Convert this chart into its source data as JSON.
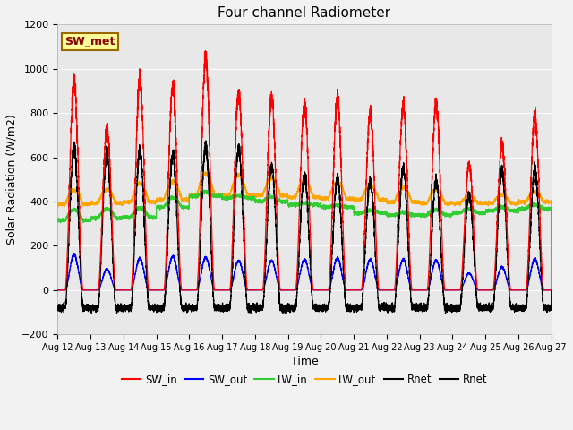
{
  "title": "Four channel Radiometer",
  "xlabel": "Time",
  "ylabel": "Solar Radiation (W/m2)",
  "ylim": [
    -200,
    1200
  ],
  "n_days": 15,
  "annotation_text": "SW_met",
  "annotation_bg": "#FFFF99",
  "annotation_border": "#996600",
  "plot_bg_color": "#e8e8e8",
  "fig_bg_color": "#f2f2f2",
  "SW_in_peak_heights": [
    950,
    730,
    950,
    920,
    1050,
    890,
    870,
    840,
    860,
    800,
    830,
    840,
    570,
    660,
    790
  ],
  "SW_out_peak_heights": [
    170,
    100,
    150,
    160,
    155,
    140,
    140,
    145,
    150,
    145,
    145,
    140,
    80,
    110,
    148
  ],
  "LW_in_base": [
    315,
    325,
    330,
    375,
    425,
    415,
    400,
    385,
    375,
    348,
    338,
    338,
    348,
    358,
    368
  ],
  "LW_in_peak": [
    395,
    395,
    400,
    445,
    455,
    435,
    435,
    398,
    388,
    368,
    358,
    378,
    378,
    388,
    398
  ],
  "LW_out_base": [
    388,
    393,
    398,
    408,
    428,
    428,
    428,
    418,
    413,
    408,
    398,
    393,
    393,
    393,
    398
  ],
  "LW_out_peak": [
    488,
    488,
    528,
    538,
    578,
    568,
    548,
    538,
    528,
    508,
    498,
    488,
    438,
    448,
    468
  ],
  "Rnet_peak_heights": [
    650,
    620,
    630,
    610,
    650,
    640,
    560,
    520,
    500,
    490,
    545,
    490,
    430,
    540,
    545
  ],
  "Rnet_night": -80,
  "yticks": [
    -200,
    0,
    200,
    400,
    600,
    800,
    1000,
    1200
  ],
  "xtick_labels": [
    "Aug 12",
    "Aug 13",
    "Aug 14",
    "Aug 15",
    "Aug 16",
    "Aug 17",
    "Aug 18",
    "Aug 19",
    "Aug 20",
    "Aug 21",
    "Aug 22",
    "Aug 23",
    "Aug 24",
    "Aug 25",
    "Aug 26",
    "Aug 27"
  ]
}
